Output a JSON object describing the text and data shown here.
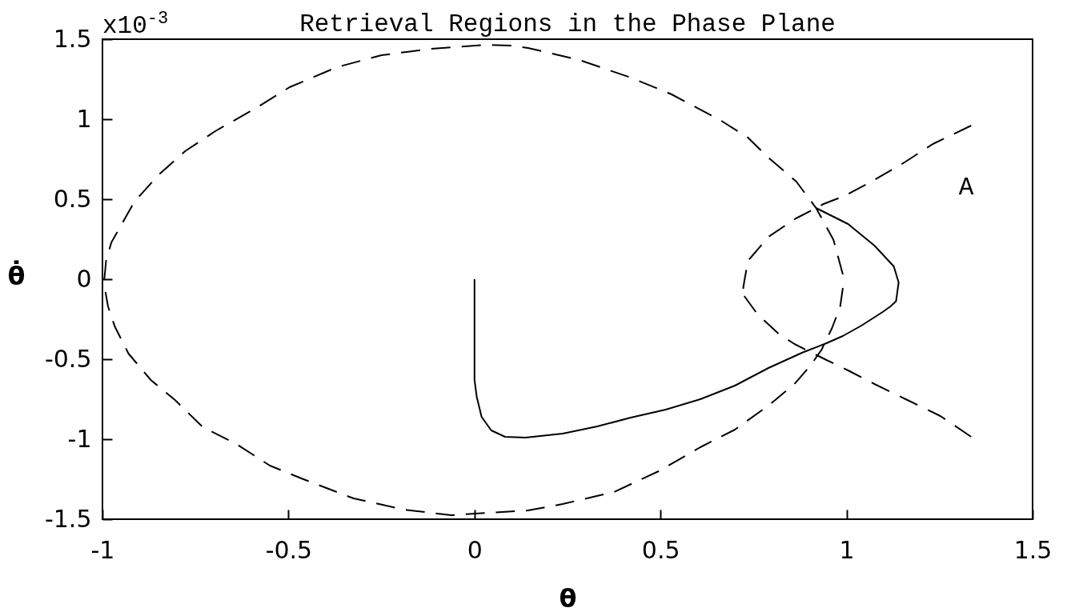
{
  "chart_data": {
    "type": "line",
    "title": "Retrieval Regions in the Phase Plane",
    "xlabel": "θ",
    "ylabel": "θ̇",
    "annotations": [
      "x10$^{-3}$",
      "A"
    ],
    "xlim": [
      -1,
      1.5
    ],
    "ylim": [
      -1.5,
      1.5
    ],
    "xticks": [
      -1,
      -0.5,
      0,
      0.5,
      1,
      1.5
    ],
    "yticks": [
      -1.5,
      -1,
      -0.5,
      0,
      0.5,
      1,
      1.5
    ],
    "series": [
      {
        "color": "#000000",
        "line_style": "dashed",
        "x": [
          -0.995,
          -0.99,
          -0.976,
          -0.914,
          -0.85,
          -0.778,
          -0.697,
          -0.587,
          -0.497,
          -0.37,
          -0.25,
          -0.116,
          0.028,
          0.1,
          0.144,
          0.282,
          0.42,
          0.53,
          0.66,
          0.735,
          0.79,
          0.865,
          0.918,
          0.965,
          0.99
        ],
        "values": [
          0,
          0.12,
          0.23,
          0.485,
          0.65,
          0.8,
          0.925,
          1.07,
          1.2,
          1.325,
          1.4,
          1.44,
          1.465,
          1.46,
          1.445,
          1.37,
          1.26,
          1.155,
          0.995,
          0.885,
          0.76,
          0.61,
          0.445,
          0.245,
          0.03
        ]
      },
      {
        "color": "#000000",
        "line_style": "dashed",
        "x": [
          -0.992,
          -0.985,
          -0.967,
          -0.93,
          -0.87,
          -0.805,
          -0.73,
          -0.64,
          -0.55,
          -0.46,
          -0.325,
          -0.19,
          -0.062,
          0.037,
          0.144,
          0.237,
          0.375,
          0.495,
          0.607,
          0.7,
          0.79,
          0.86,
          0.903,
          0.933,
          0.961,
          0.983,
          0.99
        ],
        "values": [
          -0.08,
          -0.17,
          -0.295,
          -0.465,
          -0.63,
          -0.755,
          -0.925,
          -1.03,
          -1.165,
          -1.25,
          -1.37,
          -1.44,
          -1.475,
          -1.46,
          -1.445,
          -1.405,
          -1.33,
          -1.2,
          -1.05,
          -0.94,
          -0.79,
          -0.655,
          -0.54,
          -0.44,
          -0.305,
          -0.17,
          -0.055
        ]
      },
      {
        "color": "#000000",
        "line_style": "dashed",
        "x": [
          0.722,
          0.725,
          0.735,
          0.79,
          0.864,
          0.918,
          0.938,
          0.994,
          1.067,
          1.159,
          1.232,
          1.335
        ],
        "values": [
          -0.06,
          -0.015,
          0.115,
          0.265,
          0.38,
          0.445,
          0.47,
          0.52,
          0.61,
          0.735,
          0.845,
          0.96
        ]
      },
      {
        "color": "#000000",
        "line_style": "dashed",
        "x": [
          0.725,
          0.761,
          0.817,
          0.86,
          0.903,
          0.946,
          1.004,
          1.075,
          1.159,
          1.252,
          1.335
        ],
        "values": [
          -0.105,
          -0.22,
          -0.34,
          -0.405,
          -0.455,
          -0.505,
          -0.57,
          -0.655,
          -0.75,
          -0.855,
          -0.985
        ]
      },
      {
        "color": "#000000",
        "line_style": "solid",
        "x": [
          0,
          0,
          0,
          0.006,
          0.019,
          0.045,
          0.082,
          0.137,
          0.237,
          0.33,
          0.42,
          0.514,
          0.607,
          0.7,
          0.79,
          0.88,
          0.946,
          0.99,
          1.04,
          1.097,
          1.118,
          1.133,
          1.14,
          1.127,
          1.075,
          1.004,
          0.918
        ],
        "values": [
          0,
          -0.3,
          -0.63,
          -0.735,
          -0.86,
          -0.945,
          -0.985,
          -0.99,
          -0.965,
          -0.92,
          -0.865,
          -0.815,
          -0.75,
          -0.665,
          -0.555,
          -0.46,
          -0.4,
          -0.355,
          -0.29,
          -0.205,
          -0.17,
          -0.138,
          -0.02,
          0.08,
          0.21,
          0.345,
          0.445
        ]
      }
    ]
  }
}
